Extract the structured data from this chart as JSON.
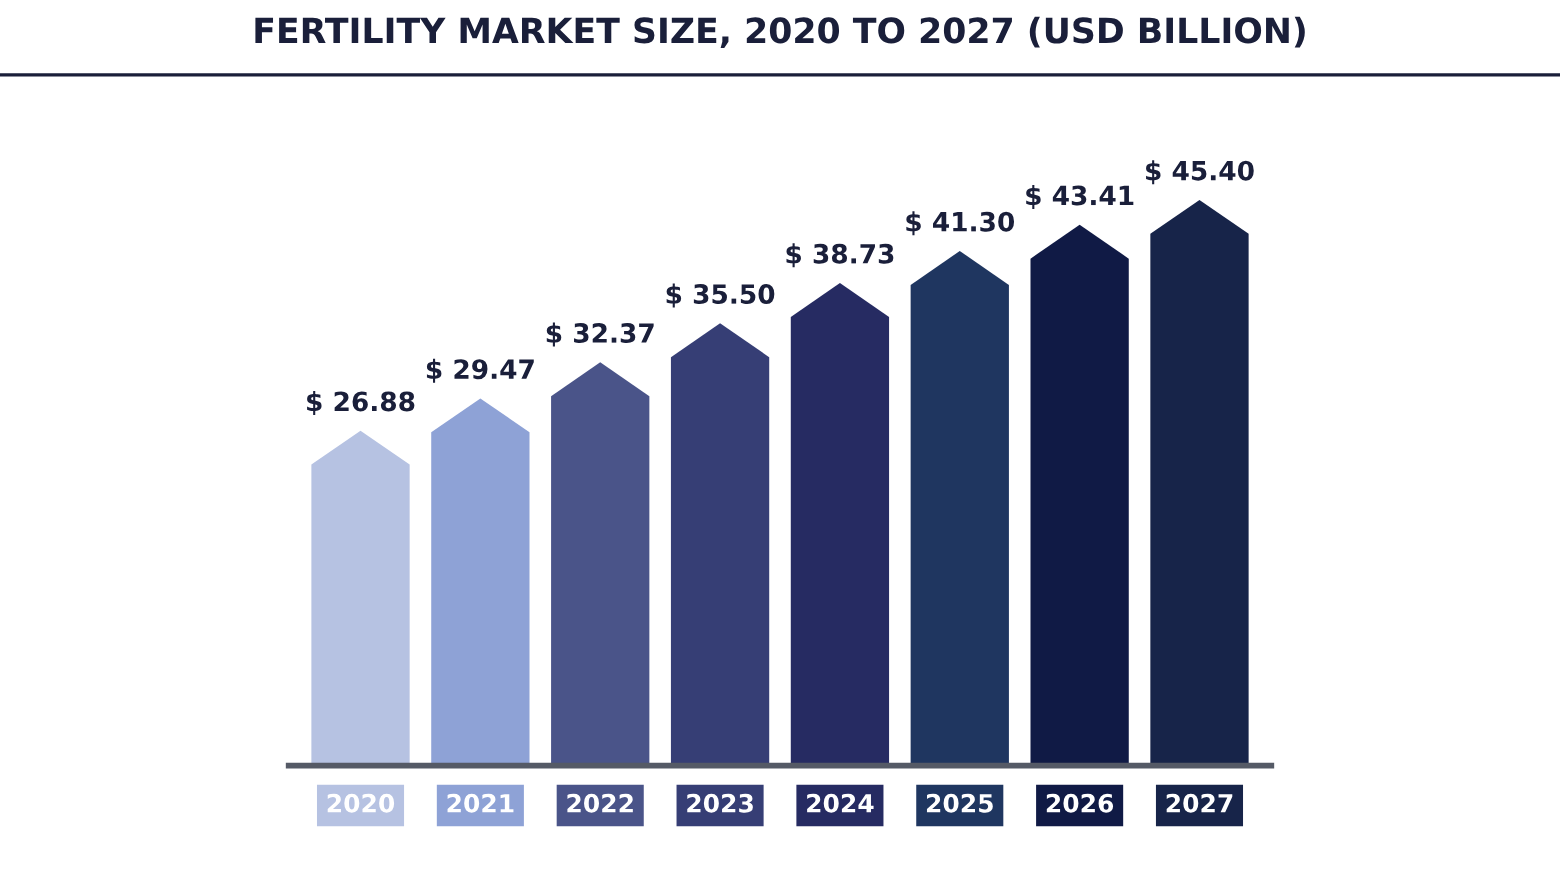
{
  "chart_data": {
    "type": "bar",
    "title": "FERTILITY MARKET SIZE, 2020 TO 2027 (USD BILLION)",
    "categories": [
      "2020",
      "2021",
      "2022",
      "2023",
      "2024",
      "2025",
      "2026",
      "2027"
    ],
    "values": [
      26.88,
      29.47,
      32.37,
      35.5,
      38.73,
      41.3,
      43.41,
      45.4
    ],
    "value_labels": [
      "$ 26.88",
      "$ 29.47",
      "$ 32.37",
      "$ 35.50",
      "$ 38.73",
      "$ 41.30",
      "$ 43.41",
      "$ 45.40"
    ],
    "colors": [
      "#b6c2e2",
      "#8ea2d6",
      "#4a5489",
      "#363e75",
      "#262b62",
      "#1f3660",
      "#101a45",
      "#172449"
    ]
  }
}
